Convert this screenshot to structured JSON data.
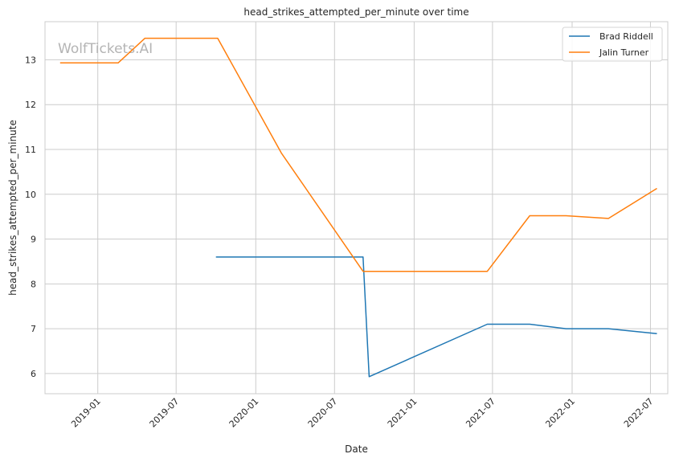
{
  "chart_data": {
    "type": "line",
    "title": "head_strikes_attempted_per_minute over time",
    "xlabel": "Date",
    "ylabel": "head_strikes_attempted_per_minute",
    "watermark": "WolfTickets.AI",
    "grid": true,
    "legend_position": "top-right",
    "xlim": [
      "2018-09-01",
      "2022-08-10"
    ],
    "ylim": [
      5.55,
      13.85
    ],
    "x_ticks": [
      "2019-01",
      "2019-07",
      "2020-01",
      "2020-07",
      "2021-01",
      "2021-07",
      "2022-01",
      "2022-07"
    ],
    "y_ticks": [
      6,
      7,
      8,
      9,
      10,
      11,
      12,
      13
    ],
    "series": [
      {
        "name": "Brad Riddell",
        "color": "#1f77b4",
        "x": [
          "2019-10-01",
          "2020-09-05",
          "2020-09-19",
          "2021-06-19",
          "2021-09-25",
          "2021-12-18",
          "2022-03-26",
          "2022-07-16"
        ],
        "y": [
          8.6,
          8.6,
          5.93,
          7.1,
          7.1,
          7.0,
          7.0,
          6.89
        ]
      },
      {
        "name": "Jalin Turner",
        "color": "#ff7f0e",
        "x": [
          "2018-10-06",
          "2019-02-17",
          "2019-04-20",
          "2019-10-05",
          "2020-02-29",
          "2020-09-05",
          "2021-06-19",
          "2021-09-25",
          "2021-12-18",
          "2022-03-26",
          "2022-07-16"
        ],
        "y": [
          12.93,
          12.93,
          13.48,
          13.48,
          10.92,
          8.28,
          8.28,
          9.52,
          9.52,
          9.46,
          10.13
        ]
      }
    ]
  }
}
